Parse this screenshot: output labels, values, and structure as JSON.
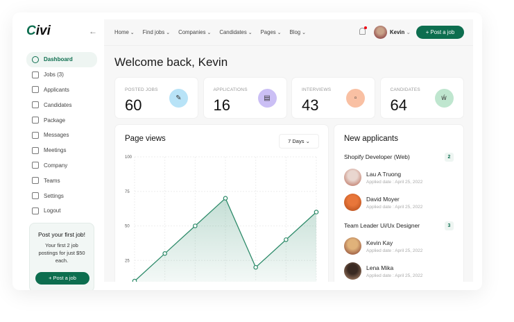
{
  "brand": {
    "logo": "Civi",
    "accent": "#0d6e4f"
  },
  "sidebar": {
    "items": [
      {
        "label": "Dashboard",
        "icon": "gauge-icon",
        "active": true
      },
      {
        "label": "Jobs (3)",
        "icon": "briefcase-icon"
      },
      {
        "label": "Applicants",
        "icon": "document-icon"
      },
      {
        "label": "Candidates",
        "icon": "people-icon"
      },
      {
        "label": "Package",
        "icon": "diamond-icon"
      },
      {
        "label": "Messages",
        "icon": "chat-icon"
      },
      {
        "label": "Meetings",
        "icon": "video-icon"
      },
      {
        "label": "Company",
        "icon": "building-icon"
      },
      {
        "label": "Teams",
        "icon": "user-plus-icon"
      },
      {
        "label": "Settings",
        "icon": "gear-icon"
      },
      {
        "label": "Logout",
        "icon": "logout-icon"
      }
    ],
    "promo": {
      "title": "Post your first job!",
      "text": "Your first 2 job postings for just $50 each.",
      "button": "+  Post a job"
    }
  },
  "topnav": {
    "menu": [
      "Home",
      "Find jobs",
      "Companies",
      "Candidates",
      "Pages",
      "Blog"
    ],
    "user": "Kevin",
    "post_button": "+  Post a job"
  },
  "welcome": "Welcome back, Kevin",
  "stats": [
    {
      "label": "POSTED JOBS",
      "value": "60",
      "color": "#b8e3f7",
      "icon": "edit-icon"
    },
    {
      "label": "APPLICATIONS",
      "value": "16",
      "color": "#cbbff5",
      "icon": "document-icon"
    },
    {
      "label": "INTERVIEWS",
      "value": "43",
      "color": "#f9c0a3",
      "icon": "chat-icon"
    },
    {
      "label": "CANDIDATES",
      "value": "64",
      "color": "#bfe6cf",
      "icon": "people-icon"
    }
  ],
  "pageviews": {
    "title": "Page views",
    "range": "7 Days"
  },
  "chart_data": {
    "type": "area",
    "title": "Page views",
    "y_ticks": [
      "100",
      "75",
      "50",
      "25"
    ],
    "ylim": [
      0,
      100
    ],
    "values": [
      10,
      30,
      50,
      70,
      20,
      40,
      60
    ],
    "grid": true,
    "color": "#2e8b6a"
  },
  "applicants": {
    "title": "New applicants",
    "groups": [
      {
        "job": "Shopify Developer (Web)",
        "count": "2",
        "people": [
          {
            "name": "Lau A Truong",
            "date": "Applied date : April 25, 2022"
          },
          {
            "name": "David Moyer",
            "date": "Applied date : April 25, 2022"
          }
        ]
      },
      {
        "job": "Team Leader Ui/Ux Designer",
        "count": "3",
        "people": [
          {
            "name": "Kevin Kay",
            "date": "Applied date : April 25, 2022"
          },
          {
            "name": "Lena Mika",
            "date": "Applied date : April 25, 2022"
          }
        ]
      }
    ]
  }
}
